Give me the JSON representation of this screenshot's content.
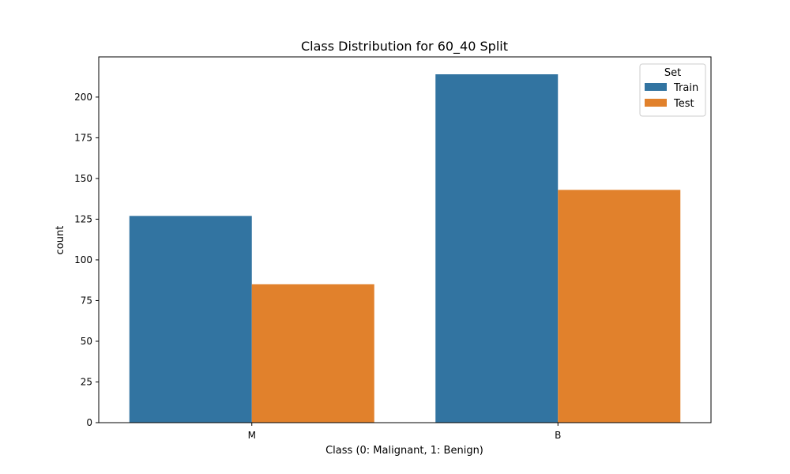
{
  "chart_data": {
    "type": "bar",
    "title": "Class Distribution for 60_40 Split",
    "xlabel": "Class (0: Malignant, 1: Benign)",
    "ylabel": "count",
    "categories": [
      "M",
      "B"
    ],
    "series": [
      {
        "name": "Train",
        "values": [
          127,
          214
        ],
        "color": "#3274a1"
      },
      {
        "name": "Test",
        "values": [
          85,
          143
        ],
        "color": "#e1812c"
      }
    ],
    "ylim": [
      0,
      224.7
    ],
    "yticks": [
      0,
      25,
      50,
      75,
      100,
      125,
      150,
      175,
      200
    ],
    "grid": false,
    "legend": {
      "title": "Set",
      "position": "top-right"
    }
  }
}
